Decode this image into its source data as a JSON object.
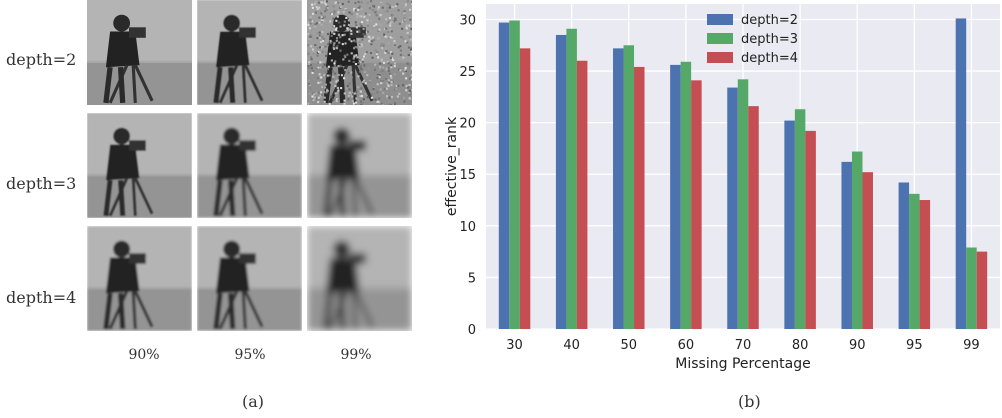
{
  "panel_a": {
    "row_labels": [
      "depth=2",
      "depth=3",
      "depth=4"
    ],
    "col_labels": [
      "90%",
      "95%",
      "99%"
    ],
    "caption": "(a)"
  },
  "panel_b": {
    "caption": "(b)"
  },
  "colors": {
    "depth2": "#4C72B0",
    "depth3": "#55A868",
    "depth4": "#C44E52",
    "plot_bg": "#EAEAF2",
    "grid": "#FFFFFF"
  },
  "chart_data": {
    "type": "bar",
    "categories": [
      "30",
      "40",
      "50",
      "60",
      "70",
      "80",
      "90",
      "95",
      "99"
    ],
    "series": [
      {
        "name": "depth=2",
        "values": [
          29.7,
          28.5,
          27.2,
          25.6,
          23.4,
          20.2,
          16.2,
          14.2,
          30.1
        ]
      },
      {
        "name": "depth=3",
        "values": [
          29.9,
          29.1,
          27.5,
          25.9,
          24.2,
          21.3,
          17.2,
          13.1,
          7.9
        ]
      },
      {
        "name": "depth=4",
        "values": [
          27.2,
          26.0,
          25.4,
          24.1,
          21.6,
          19.2,
          15.2,
          12.5,
          7.5
        ]
      }
    ],
    "xlabel": "Missing Percentage",
    "ylabel": "effective_rank",
    "ylim": [
      0,
      31.5
    ],
    "yticks": [
      0,
      5,
      10,
      15,
      20,
      25,
      30
    ],
    "grid": true,
    "legend_position": "top-center"
  }
}
